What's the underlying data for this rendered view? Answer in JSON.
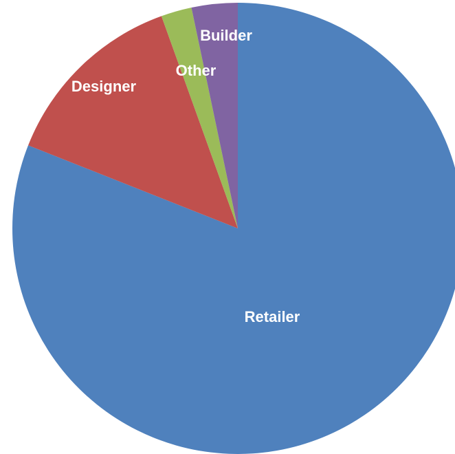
{
  "chart_data": {
    "type": "pie",
    "title": "",
    "start_angle_deg": 0,
    "direction": "clockwise",
    "slices": [
      {
        "label": "Retailer",
        "value": 81.0,
        "color": "#4f81bd"
      },
      {
        "label": "Designer",
        "value": 13.5,
        "color": "#c0504d"
      },
      {
        "label": "Other",
        "value": 2.2,
        "color": "#9bbb59"
      },
      {
        "label": "Builder",
        "value": 3.3,
        "color": "#8064a2"
      }
    ]
  }
}
